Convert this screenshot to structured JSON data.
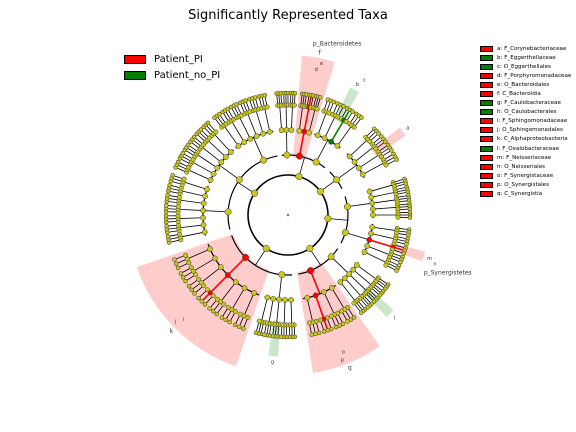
{
  "chart_data": {
    "type": "cladogram",
    "title": "Significantly Represented Taxa",
    "groups": [
      {
        "name": "Patient_PI",
        "color": "#ff0000"
      },
      {
        "name": "Patient_no_PI",
        "color": "#008000"
      }
    ],
    "taxa": [
      {
        "key": "a",
        "name": "F_Corynebacteriaceae",
        "group": "Patient_PI",
        "rank": "family"
      },
      {
        "key": "b",
        "name": "F_Eggerthellaceae",
        "group": "Patient_no_PI",
        "rank": "family"
      },
      {
        "key": "c",
        "name": "O_Eggerthellales",
        "group": "Patient_no_PI",
        "rank": "order"
      },
      {
        "key": "d",
        "name": "F_Porphyromonadaceae",
        "group": "Patient_PI",
        "rank": "family"
      },
      {
        "key": "e",
        "name": "O_Bacteroidales",
        "group": "Patient_PI",
        "rank": "order"
      },
      {
        "key": "f",
        "name": "C_Bacteroidia",
        "group": "Patient_PI",
        "rank": "class"
      },
      {
        "key": "g",
        "name": "F_Caulobacteraceae",
        "group": "Patient_no_PI",
        "rank": "family"
      },
      {
        "key": "h",
        "name": "O_Caulobacterales",
        "group": "Patient_no_PI",
        "rank": "order"
      },
      {
        "key": "i",
        "name": "F_Sphingomonadaceae",
        "group": "Patient_PI",
        "rank": "family"
      },
      {
        "key": "j",
        "name": "O_Sphingomonadales",
        "group": "Patient_PI",
        "rank": "order"
      },
      {
        "key": "k",
        "name": "C_Alphaproteobacteria",
        "group": "Patient_PI",
        "rank": "class"
      },
      {
        "key": "l",
        "name": "F_Oxalobacteraceae",
        "group": "Patient_no_PI",
        "rank": "family"
      },
      {
        "key": "m",
        "name": "F_Neisseriaceae",
        "group": "Patient_PI",
        "rank": "family"
      },
      {
        "key": "n",
        "name": "O_Neisseriales",
        "group": "Patient_PI",
        "rank": "order"
      },
      {
        "key": "o",
        "name": "F_Synergistaceae",
        "group": "Patient_PI",
        "rank": "family"
      },
      {
        "key": "p",
        "name": "O_Synergistales",
        "group": "Patient_PI",
        "rank": "order"
      },
      {
        "key": "q",
        "name": "C_Synergistia",
        "group": "Patient_PI",
        "rank": "class"
      }
    ],
    "phylum_labels": [
      "p_Bacteroidetes",
      "p_Synergistetes"
    ]
  },
  "colors": {
    "node_default": "#c8c81e",
    "highlight_pi": "#ff0000",
    "highlight_no_pi": "#008000"
  }
}
